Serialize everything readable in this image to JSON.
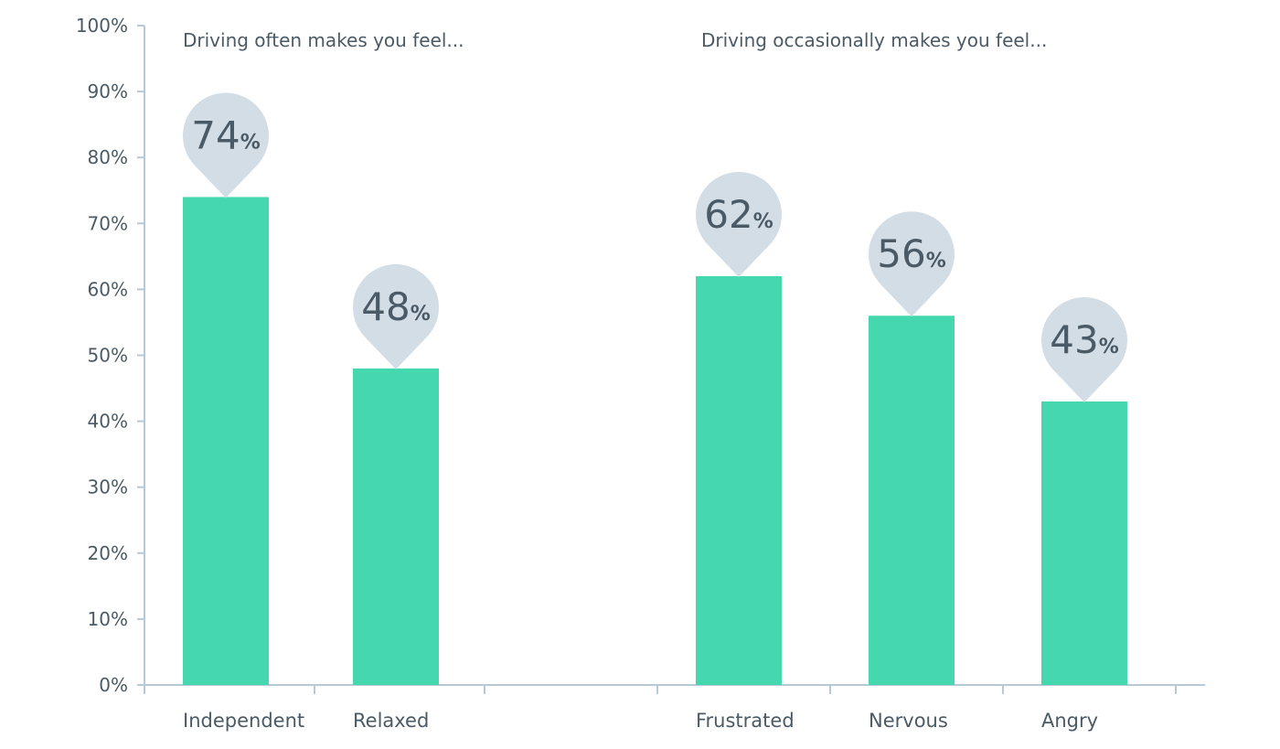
{
  "chart_data": {
    "type": "bar",
    "y_axis": {
      "min": 0,
      "max": 100,
      "step": 10,
      "tick_labels": [
        "0%",
        "10%",
        "20%",
        "30%",
        "40%",
        "50%",
        "60%",
        "70%",
        "80%",
        "90%",
        "100%"
      ]
    },
    "groups": [
      {
        "title": "Driving often makes you feel...",
        "bars": [
          {
            "category": "Independent",
            "value": 74,
            "label_number": "74",
            "label_suffix": "%"
          },
          {
            "category": "Relaxed",
            "value": 48,
            "label_number": "48",
            "label_suffix": "%"
          }
        ]
      },
      {
        "title": "Driving occasionally makes you feel...",
        "bars": [
          {
            "category": "Frustrated",
            "value": 62,
            "label_number": "62",
            "label_suffix": "%"
          },
          {
            "category": "Nervous",
            "value": 56,
            "label_number": "56",
            "label_suffix": "%"
          },
          {
            "category": "Angry",
            "value": 43,
            "label_number": "43",
            "label_suffix": "%"
          }
        ]
      }
    ],
    "grid": false,
    "legend": "none"
  },
  "colors": {
    "bar": "#45d8ae",
    "pin": "#d3dde6",
    "axis": "#b7c9d6",
    "text": "#4a5a66"
  }
}
